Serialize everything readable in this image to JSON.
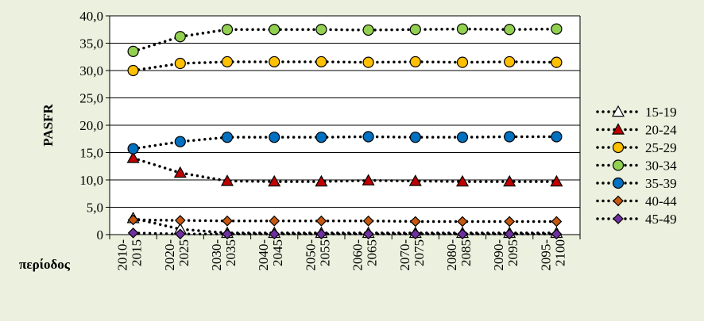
{
  "chart_data": {
    "type": "line",
    "ylabel": "PASFR",
    "xlabel": "περίοδος",
    "ylim": [
      0,
      40
    ],
    "yticks": [
      "0",
      "5,0",
      "10,0",
      "15,0",
      "20,0",
      "25,0",
      "30,0",
      "35,0",
      "40,0"
    ],
    "categories": [
      [
        "2010-",
        "2015"
      ],
      [
        "2020-",
        "2025"
      ],
      [
        "2030-",
        "2035"
      ],
      [
        "2040-",
        "2045"
      ],
      [
        "2050-",
        "2055"
      ],
      [
        "2060-",
        "2065"
      ],
      [
        "2070-",
        "2075"
      ],
      [
        "2080-",
        "2085"
      ],
      [
        "2090-",
        "2095"
      ],
      [
        "2095-",
        "2100"
      ]
    ],
    "grid": true,
    "legend_position": "right",
    "series": [
      {
        "name": "15-19",
        "marker": "triangle",
        "color": "#ffffff",
        "values": [
          3.0,
          1.0,
          0.3,
          0.3,
          0.3,
          0.3,
          0.3,
          0.3,
          0.3,
          0.3
        ]
      },
      {
        "name": "20-24",
        "marker": "triangle",
        "color": "#c00000",
        "values": [
          14.0,
          11.3,
          9.8,
          9.7,
          9.7,
          9.9,
          9.8,
          9.7,
          9.7,
          9.7
        ]
      },
      {
        "name": "25-29",
        "marker": "circle",
        "color": "#ffc000",
        "values": [
          30.0,
          31.3,
          31.6,
          31.6,
          31.6,
          31.5,
          31.6,
          31.5,
          31.6,
          31.5
        ]
      },
      {
        "name": "30-34",
        "marker": "circle",
        "color": "#92d050",
        "values": [
          33.5,
          36.2,
          37.5,
          37.5,
          37.5,
          37.4,
          37.5,
          37.6,
          37.5,
          37.6
        ]
      },
      {
        "name": "35-39",
        "marker": "circle",
        "color": "#0070c0",
        "values": [
          15.7,
          17.0,
          17.8,
          17.8,
          17.8,
          17.9,
          17.8,
          17.8,
          17.9,
          17.9
        ]
      },
      {
        "name": "40-44",
        "marker": "diamond",
        "color": "#c65911",
        "values": [
          2.7,
          2.6,
          2.5,
          2.5,
          2.5,
          2.5,
          2.4,
          2.4,
          2.4,
          2.4
        ]
      },
      {
        "name": "45-49",
        "marker": "diamond",
        "color": "#7030a0",
        "values": [
          0.3,
          0.1,
          0.1,
          0.1,
          0.1,
          0.1,
          0.1,
          0.1,
          0.1,
          0.1
        ]
      }
    ]
  }
}
